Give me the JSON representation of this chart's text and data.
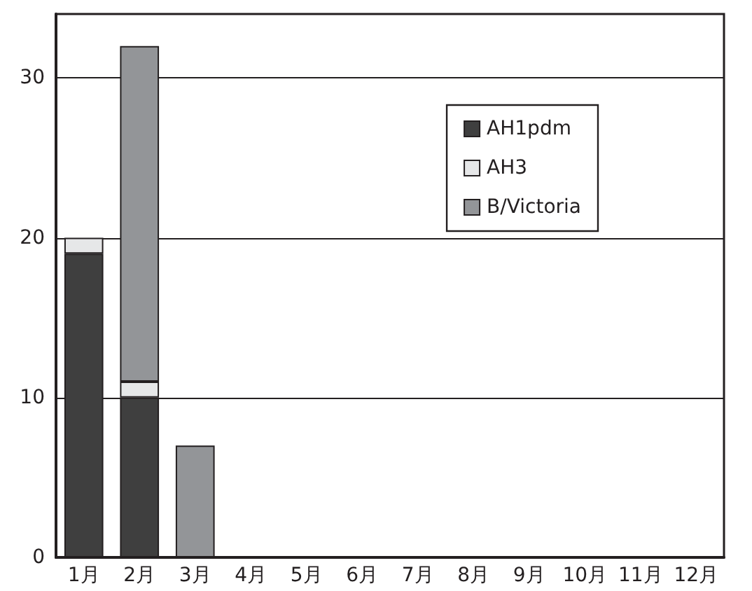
{
  "chart_data": {
    "type": "bar",
    "stacked": true,
    "categories": [
      "1月",
      "2月",
      "3月",
      "4月",
      "5月",
      "6月",
      "7月",
      "8月",
      "9月",
      "10月",
      "11月",
      "12月"
    ],
    "series": [
      {
        "name": "AH1pdm",
        "color": "#3f3f3f",
        "values": [
          19,
          10,
          0,
          0,
          0,
          0,
          0,
          0,
          0,
          0,
          0,
          0
        ]
      },
      {
        "name": "AH3",
        "color": "#e6e7e8",
        "values": [
          1,
          1,
          0,
          0,
          0,
          0,
          0,
          0,
          0,
          0,
          0,
          0
        ]
      },
      {
        "name": "B/Victoria",
        "color": "#939598",
        "values": [
          0,
          21,
          7,
          0,
          0,
          0,
          0,
          0,
          0,
          0,
          0,
          0
        ]
      }
    ],
    "ylim": [
      0,
      34
    ],
    "yticks": [
      0,
      10,
      20,
      30
    ],
    "grid": "y",
    "legend": "top right"
  }
}
